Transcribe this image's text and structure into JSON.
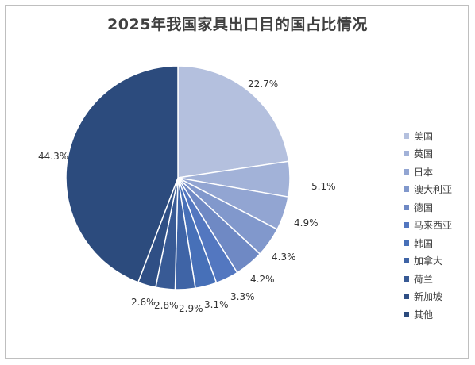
{
  "chart_data": {
    "type": "pie",
    "title": "2025年我国家具出口目的国占比情况",
    "legend_position": "right",
    "slices": [
      {
        "label": "美国",
        "value": 22.7,
        "value_label": "22.7%",
        "color": "#b4c0de"
      },
      {
        "label": "英国",
        "value": 5.1,
        "value_label": "5.1%",
        "color": "#a2b2d8"
      },
      {
        "label": "日本",
        "value": 4.9,
        "value_label": "4.9%",
        "color": "#92a5d2"
      },
      {
        "label": "澳大利亚",
        "value": 4.3,
        "value_label": "4.3%",
        "color": "#8198cc"
      },
      {
        "label": "德国",
        "value": 4.2,
        "value_label": "4.2%",
        "color": "#6f89c4"
      },
      {
        "label": "马来西亚",
        "value": 3.3,
        "value_label": "3.3%",
        "color": "#5377c0"
      },
      {
        "label": "韩国",
        "value": 3.1,
        "value_label": "3.1%",
        "color": "#4770b8"
      },
      {
        "label": "加拿大",
        "value": 2.9,
        "value_label": "2.9%",
        "color": "#3f64a6"
      },
      {
        "label": "荷兰",
        "value": 2.8,
        "value_label": "2.8%",
        "color": "#385a95"
      },
      {
        "label": "新加坡",
        "value": 2.6,
        "value_label": "2.6%",
        "color": "#2f4f85"
      },
      {
        "label": "其他",
        "value": 44.3,
        "value_label": "44.3%",
        "color": "#2c4b7d"
      }
    ]
  }
}
